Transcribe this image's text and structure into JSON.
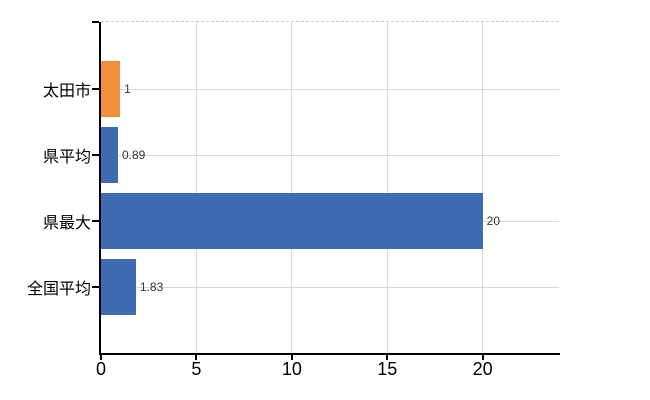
{
  "chart_data": {
    "type": "bar",
    "orientation": "horizontal",
    "title": "",
    "categories": [
      "太田市",
      "県平均",
      "県最大",
      "全国平均"
    ],
    "values": [
      1,
      0.89,
      20,
      1.83
    ],
    "value_labels": [
      "1",
      "0.89",
      "20",
      "1.83"
    ],
    "bar_colors": [
      "#f0903c",
      "#3e6cb2",
      "#3e6cb2",
      "#3e6cb2"
    ],
    "x_ticks": [
      0,
      5,
      10,
      15,
      20
    ],
    "xlim": [
      0,
      24
    ],
    "grid": true,
    "legend": false,
    "colors": {
      "background": "#ffffff",
      "axis": "#000000",
      "gridline": "#d9d9d9",
      "plot_top_dashed": "#cccccc",
      "value_label": "#333333",
      "tick_label": "#000000",
      "category_label": "#000000"
    }
  }
}
